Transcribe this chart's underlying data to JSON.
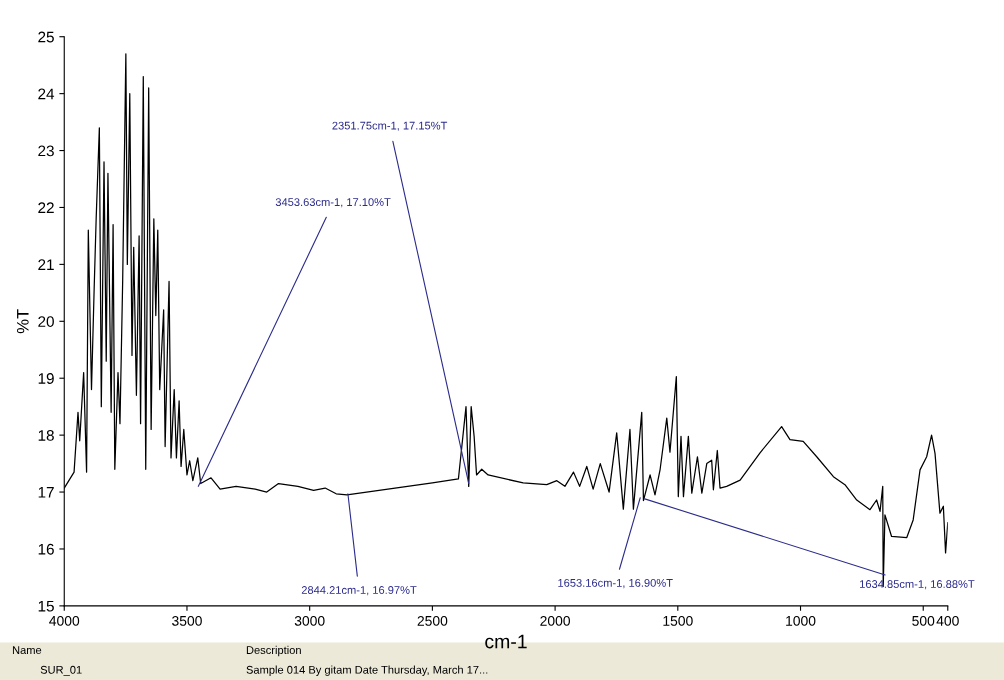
{
  "chart_data": {
    "type": "line",
    "xlabel": "cm-1",
    "ylabel": "%T",
    "xlim": [
      4000,
      400
    ],
    "ylim": [
      15,
      25
    ],
    "xticks": [
      4000,
      3500,
      3000,
      2500,
      2000,
      1500,
      1000,
      500,
      400
    ],
    "yticks": [
      15,
      16,
      17,
      18,
      19,
      20,
      21,
      22,
      23,
      24,
      25
    ],
    "grid": false,
    "legend": false,
    "marker": "none",
    "line_style": "solid",
    "series": [
      {
        "color": "#000000",
        "x": [
          4000,
          3960,
          3944,
          3937,
          3921,
          3909,
          3902,
          3889,
          3878,
          3870,
          3857,
          3849,
          3838,
          3829,
          3822,
          3809,
          3801,
          3794,
          3781,
          3773,
          3762,
          3749,
          3743,
          3733,
          3724,
          3717,
          3706,
          3695,
          3689,
          3678,
          3668,
          3656,
          3646,
          3635,
          3627,
          3619,
          3611,
          3595,
          3589,
          3573,
          3565,
          3552,
          3543,
          3532,
          3524,
          3513,
          3500,
          3489,
          3476,
          3456,
          3444,
          3402,
          3365,
          3300,
          3222,
          3175,
          3127,
          3048,
          2984,
          2937,
          2892,
          2848,
          2500,
          2394,
          2363,
          2352,
          2342,
          2330,
          2320,
          2299,
          2273,
          2130,
          2034,
          1993,
          1960,
          1925,
          1900,
          1871,
          1845,
          1816,
          1780,
          1749,
          1722,
          1695,
          1681,
          1647,
          1640,
          1613,
          1593,
          1572,
          1545,
          1532,
          1506,
          1498,
          1487,
          1477,
          1457,
          1443,
          1420,
          1402,
          1382,
          1362,
          1355,
          1339,
          1328,
          1301,
          1246,
          1165,
          1077,
          1043,
          989,
          934,
          866,
          819,
          771,
          717,
          690,
          676,
          665,
          663,
          656,
          629,
          567,
          541,
          513,
          486,
          466,
          452,
          432,
          418,
          409,
          400
        ],
        "values": [
          17.07,
          17.35,
          18.4,
          17.9,
          19.1,
          17.35,
          21.6,
          18.8,
          20.6,
          21.8,
          23.4,
          18.5,
          22.8,
          19.3,
          22.6,
          18.4,
          21.7,
          17.4,
          19.1,
          18.2,
          20.7,
          24.7,
          21.0,
          24.0,
          19.4,
          21.3,
          18.7,
          21.5,
          18.2,
          24.3,
          17.4,
          24.1,
          18.1,
          21.8,
          20.1,
          21.6,
          18.8,
          20.2,
          17.8,
          20.7,
          17.6,
          18.8,
          17.6,
          18.6,
          17.45,
          18.1,
          17.3,
          17.55,
          17.2,
          17.6,
          17.15,
          17.25,
          17.05,
          17.1,
          17.05,
          17.0,
          17.15,
          17.1,
          17.03,
          17.07,
          16.97,
          16.95,
          17.16,
          17.23,
          18.5,
          17.1,
          18.5,
          17.98,
          17.3,
          17.4,
          17.3,
          17.16,
          17.13,
          17.2,
          17.1,
          17.35,
          17.1,
          17.45,
          17.05,
          17.5,
          17.0,
          18.04,
          16.7,
          18.1,
          16.7,
          18.4,
          16.85,
          17.3,
          16.95,
          17.4,
          18.3,
          17.7,
          19.03,
          16.92,
          17.98,
          16.92,
          17.98,
          16.98,
          17.62,
          16.98,
          17.5,
          17.56,
          17.04,
          17.73,
          17.07,
          17.1,
          17.21,
          17.69,
          18.15,
          17.92,
          17.89,
          17.62,
          17.27,
          17.13,
          16.86,
          16.69,
          16.86,
          16.66,
          17.1,
          15.34,
          16.6,
          16.22,
          16.2,
          16.51,
          17.39,
          17.62,
          18.0,
          17.68,
          16.63,
          16.75,
          15.93,
          16.46
        ]
      }
    ],
    "annotations": [
      {
        "text": "3453.63cm-1, 17.10%T",
        "x": 3453.63,
        "y": 17.1
      },
      {
        "text": "2351.75cm-1, 17.15%T",
        "x": 2351.75,
        "y": 17.15
      },
      {
        "text": "2844.21cm-1, 16.97%T",
        "x": 2844.21,
        "y": 16.97
      },
      {
        "text": "1653.16cm-1, 16.90%T",
        "x": 1653.16,
        "y": 16.9
      },
      {
        "text": "1634.85cm-1, 16.88%T",
        "x": 1634.85,
        "y": 16.88
      },
      "Name",
      "Description",
      "SUR_01",
      "Sample 014 By gitam Date Thursday, March 17..."
    ]
  }
}
